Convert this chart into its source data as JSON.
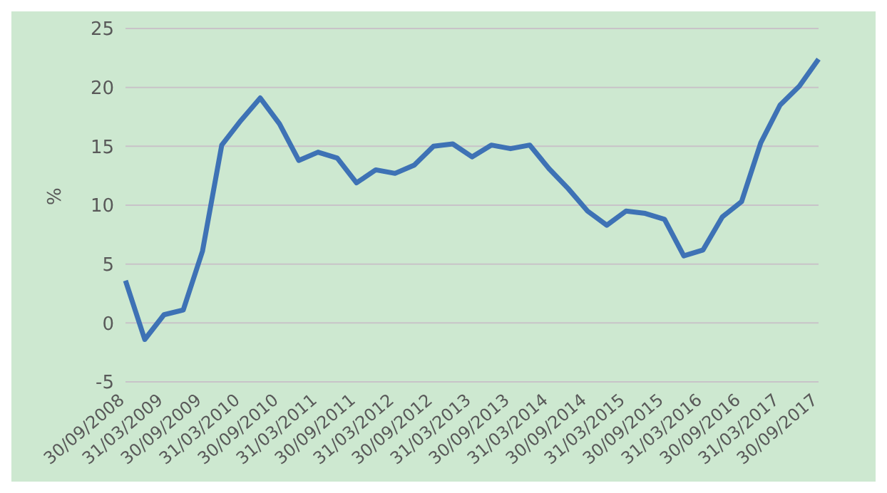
{
  "chart_data": {
    "type": "line",
    "ylabel": "%",
    "categories": [
      "30/09/2008",
      null,
      "31/03/2009",
      null,
      "30/09/2009",
      null,
      "31/03/2010",
      null,
      "30/09/2010",
      null,
      "31/03/2011",
      null,
      "30/09/2011",
      null,
      "31/03/2012",
      null,
      "30/09/2012",
      null,
      "31/03/2013",
      null,
      "30/09/2013",
      null,
      "31/03/2014",
      null,
      "30/09/2014",
      null,
      "31/03/2015",
      null,
      "30/09/2015",
      null,
      "31/03/2016",
      null,
      "30/09/2016",
      null,
      "31/03/2017",
      null,
      "30/09/2017"
    ],
    "series": [
      {
        "color": "#3e72b5",
        "values": [
          3.6,
          -1.4,
          0.7,
          1.1,
          6.1,
          15.1,
          17.2,
          19.1,
          16.9,
          13.8,
          14.5,
          14.0,
          11.9,
          13.0,
          12.7,
          13.4,
          15.0,
          15.2,
          14.1,
          15.1,
          14.8,
          15.1,
          13.1,
          11.4,
          9.5,
          8.3,
          9.5,
          9.3,
          8.8,
          5.7,
          6.2,
          9.0,
          10.3,
          15.3,
          18.5,
          20.1,
          22.4
        ]
      }
    ],
    "ylim": [
      -5,
      25
    ],
    "yticks": [
      -5,
      0,
      5,
      10,
      15,
      20,
      25
    ],
    "grid": "y",
    "legend": false,
    "marker": "none",
    "line_style": "solid"
  }
}
